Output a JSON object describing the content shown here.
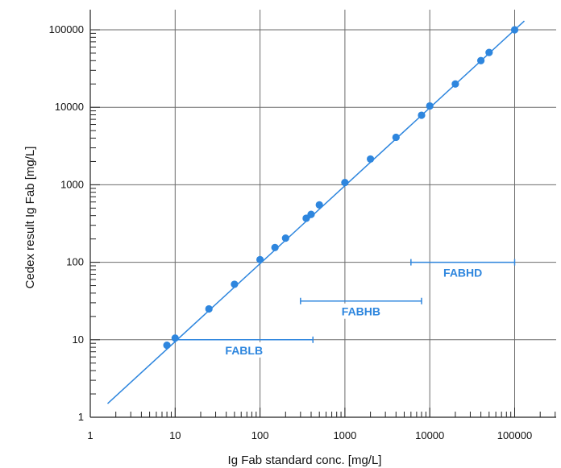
{
  "chart_data": {
    "type": "scatter",
    "xlabel": "Ig Fab standard conc. [mg/L]",
    "ylabel": "Cedex result Ig Fab [mg/L]",
    "xscale": "log",
    "yscale": "log",
    "xlim": [
      1,
      200000
    ],
    "ylim": [
      1,
      200000
    ],
    "grid": true,
    "x_ticks": [
      "1",
      "10",
      "100",
      "1000",
      "10000",
      "100000"
    ],
    "y_ticks": [
      "1",
      "10",
      "100",
      "1000",
      "10000",
      "100000"
    ],
    "points": [
      {
        "x": 8,
        "y": 8.5
      },
      {
        "x": 10,
        "y": 10.5
      },
      {
        "x": 25,
        "y": 25
      },
      {
        "x": 50,
        "y": 52
      },
      {
        "x": 100,
        "y": 108
      },
      {
        "x": 150,
        "y": 155
      },
      {
        "x": 200,
        "y": 205
      },
      {
        "x": 350,
        "y": 370
      },
      {
        "x": 400,
        "y": 415
      },
      {
        "x": 500,
        "y": 550
      },
      {
        "x": 1000,
        "y": 1070
      },
      {
        "x": 2000,
        "y": 2150
      },
      {
        "x": 4000,
        "y": 4100
      },
      {
        "x": 8000,
        "y": 7900
      },
      {
        "x": 10000,
        "y": 10400
      },
      {
        "x": 20000,
        "y": 20000
      },
      {
        "x": 40000,
        "y": 40000
      },
      {
        "x": 50000,
        "y": 51000
      },
      {
        "x": 100000,
        "y": 100000
      }
    ],
    "fit_line": [
      [
        1.6,
        1.5
      ],
      [
        130000,
        130000
      ]
    ],
    "ranges": [
      {
        "label": "FABLB",
        "x_min": 10,
        "x_max": 420,
        "y": 10
      },
      {
        "label": "FABHB",
        "x_min": 300,
        "x_max": 8000,
        "y": 31.6
      },
      {
        "label": "FABHD",
        "x_min": 6000,
        "x_max": 100000,
        "y": 100
      }
    ],
    "colors": {
      "series": "#2e86de",
      "grid": "#6b6b6b",
      "axis": "#222222",
      "text": "#111111"
    }
  }
}
